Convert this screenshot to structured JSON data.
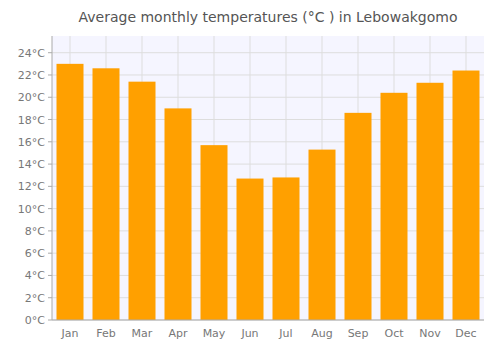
{
  "chart_data": {
    "type": "bar",
    "title": "Average monthly temperatures (°C ) in Lebowakgomo",
    "categories": [
      "Jan",
      "Feb",
      "Mar",
      "Apr",
      "May",
      "Jun",
      "Jul",
      "Aug",
      "Sep",
      "Oct",
      "Nov",
      "Dec"
    ],
    "values": [
      23.0,
      22.6,
      21.4,
      19.0,
      15.7,
      12.7,
      12.8,
      15.3,
      18.6,
      20.4,
      21.3,
      22.4
    ],
    "color": "#FFA000",
    "ylim": [
      0,
      25.5
    ],
    "yticks": [
      {
        "value": 0,
        "label": "0°C"
      },
      {
        "value": 2,
        "label": "2°C"
      },
      {
        "value": 4,
        "label": "4°C"
      },
      {
        "value": 6,
        "label": "6°C"
      },
      {
        "value": 8,
        "label": "8°C"
      },
      {
        "value": 10,
        "label": "10°C"
      },
      {
        "value": 12,
        "label": "12°C"
      },
      {
        "value": 14,
        "label": "14°C"
      },
      {
        "value": 16,
        "label": "16°C"
      },
      {
        "value": 18,
        "label": "18°C"
      },
      {
        "value": 20,
        "label": "20°C"
      },
      {
        "value": 22,
        "label": "22°C"
      },
      {
        "value": 24,
        "label": "24°C"
      }
    ],
    "grid": true
  }
}
